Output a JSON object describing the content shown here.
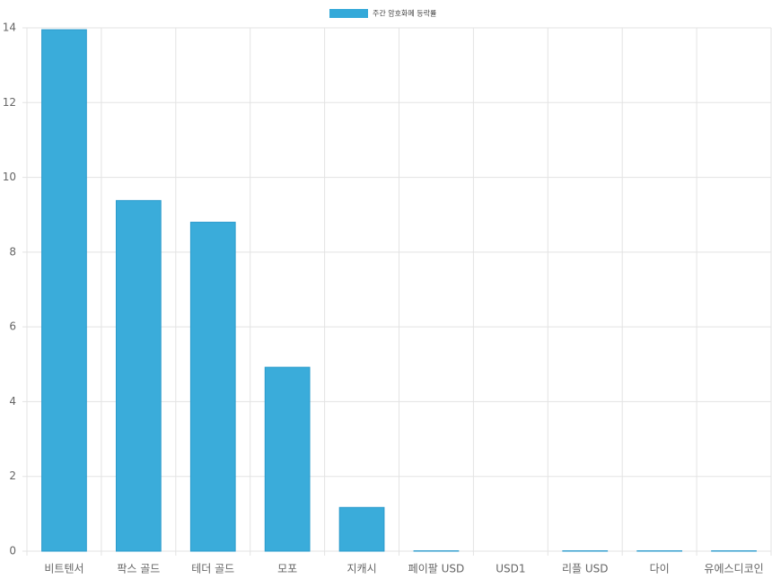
{
  "chart_data": {
    "type": "bar",
    "categories": [
      "비트텐서",
      "팍스 골드",
      "테더 골드",
      "모포",
      "지캐시",
      "페이팔 USD",
      "USD1",
      "리플 USD",
      "다이",
      "유에스디코인"
    ],
    "series": [
      {
        "name": "주간 암호화폐 등락률",
        "color": "#34a9d9",
        "values": [
          13.95,
          9.38,
          8.8,
          4.92,
          1.17,
          0.01,
          0,
          0.01,
          0.01,
          0.01
        ]
      }
    ],
    "ylim": [
      0,
      14
    ],
    "yticks": [
      0,
      2,
      4,
      6,
      8,
      10,
      12,
      14
    ],
    "grid": true,
    "legend": "top"
  }
}
